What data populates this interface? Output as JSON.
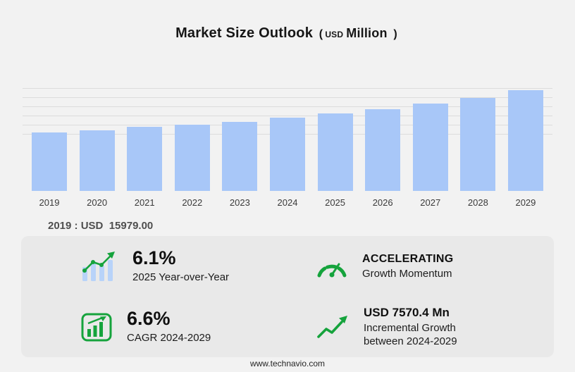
{
  "page": {
    "footer_url": "www.technavio.com"
  },
  "title": {
    "main": "Market Size Outlook",
    "paren_open": "(",
    "currency": "USD",
    "unit": "Million",
    "paren_close": ")"
  },
  "annotation": {
    "text": "2019 : USD  15979.00"
  },
  "chart_data": {
    "type": "bar",
    "title": "Market Size Outlook (USD Million)",
    "categories": [
      "2019",
      "2020",
      "2021",
      "2022",
      "2023",
      "2024",
      "2025",
      "2026",
      "2027",
      "2028",
      "2029"
    ],
    "values": [
      15979,
      16570,
      17540,
      18120,
      18900,
      19880,
      21090,
      22220,
      23780,
      25340,
      27450
    ],
    "xlabel": "",
    "ylabel": "",
    "bar_color": "#a8c7f8",
    "gridlines": true,
    "legend": false,
    "labeled_point": {
      "category": "2019",
      "label": "2019 : USD  15979.00"
    }
  },
  "stats": {
    "yoy": {
      "value": "6.1%",
      "label": "2025 Year-over-Year"
    },
    "momentum": {
      "value": "ACCELERATING",
      "label": "Growth Momentum"
    },
    "cagr": {
      "value": "6.6%",
      "label": "CAGR 2024-2029"
    },
    "incremental": {
      "value": "USD 7570.4 Mn",
      "label_line1": "Incremental Growth",
      "label_line2": "between 2024-2029"
    }
  },
  "icons": {
    "yoy": "bar-trend-icon",
    "momentum": "speedometer-icon",
    "cagr": "chart-growth-icon",
    "incremental": "arrow-growth-icon"
  },
  "colors": {
    "accent_green": "#15a33c",
    "bar_blue": "#a8c7f8",
    "panel_gray": "#e9e9e9",
    "background": "#f2f2f2"
  }
}
